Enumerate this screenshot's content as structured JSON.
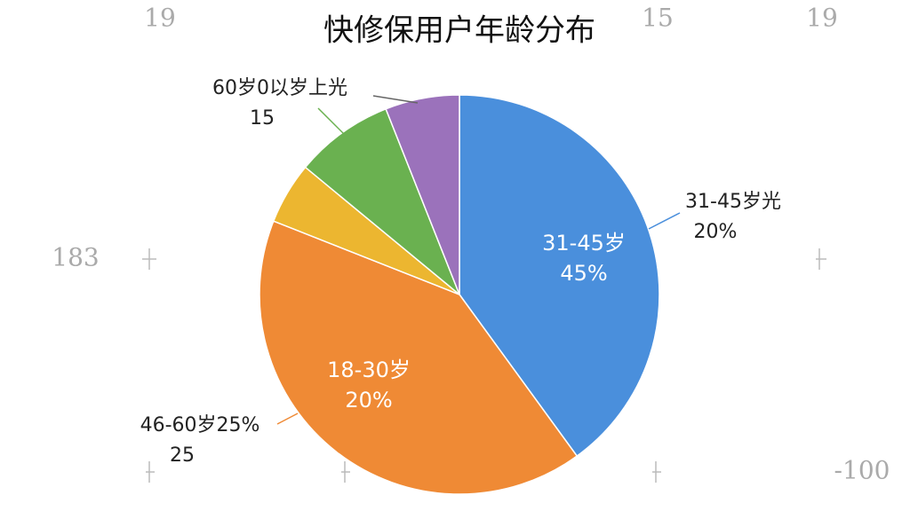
{
  "chart_data": {
    "type": "pie",
    "title": "快修保用户年龄分布",
    "values": [
      40,
      41,
      5,
      8,
      6
    ],
    "colors": [
      "#4a8fdc",
      "#ef8a35",
      "#ecb630",
      "#6ab150",
      "#9b72bb"
    ],
    "inner_labels": [
      [
        "31-45岁",
        "45%"
      ],
      [
        "18-30岁",
        "20%"
      ]
    ],
    "annotations": [
      [
        "31-45岁光",
        "20%"
      ],
      [
        "46-60岁25%",
        "25"
      ],
      [
        "60岁0以岁上光",
        "15"
      ]
    ],
    "background_text": [
      "19",
      "15",
      "19",
      "183",
      "-100"
    ]
  }
}
